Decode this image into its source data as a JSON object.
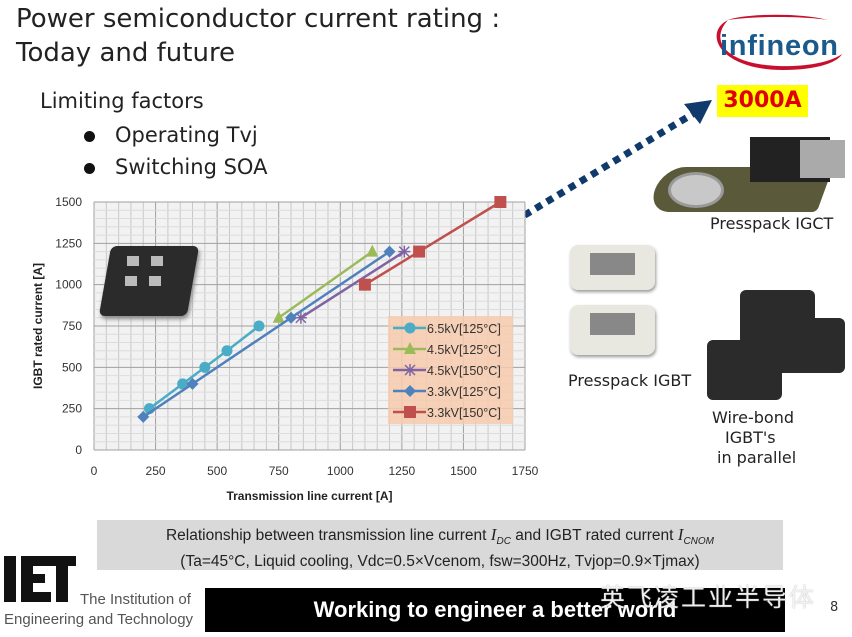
{
  "title": {
    "line1": "Power semiconductor current rating :",
    "line2": "Today and future"
  },
  "limiting": {
    "heading": "Limiting factors",
    "bullets": [
      "Operating Tvj",
      "Switching SOA"
    ]
  },
  "logo": {
    "text": "infineon",
    "color": "#1b5a8c",
    "swoosh": "#c8102e"
  },
  "badge": {
    "text": "3000A",
    "bg": "#ffff00",
    "color": "#e00000"
  },
  "devices": {
    "igct": "Presspack IGCT",
    "igbt": "Presspack IGBT",
    "wirebond": [
      "Wire-bond",
      "IGBT's",
      "in parallel"
    ]
  },
  "caption": {
    "line1_a": "Relationship between transmission line current ",
    "idc": "I",
    "idc_sub": "DC",
    "line1_b": " and IGBT rated current ",
    "icnom": "I",
    "icnom_sub": "CNOM",
    "line2": "(Ta=45°C, Liquid cooling, Vdc=0.5×Vcenom, fsw=300Hz, Tvjop=0.9×Tjmax)"
  },
  "footer": {
    "banner": "Working to engineer a better world",
    "iet_logo": "IET",
    "iet_line1": "The Institution of",
    "iet_line2": "Engineering and Technology",
    "page_number": "8",
    "watermark": "英飞凌工业半导体"
  },
  "chart_data": {
    "type": "line",
    "xlabel": "Transmission line current [A]",
    "ylabel": "IGBT rated current [A]",
    "xlim": [
      0,
      1750
    ],
    "ylim": [
      0,
      1500
    ],
    "xticks": [
      0,
      250,
      500,
      750,
      1000,
      1250,
      1500,
      1750
    ],
    "yticks": [
      0,
      250,
      500,
      750,
      1000,
      1250,
      1500
    ],
    "grid": true,
    "legend_position": "bottom-right",
    "series": [
      {
        "name": "6.5kV[125°C]",
        "color": "#4bacc6",
        "marker": "circle",
        "points": [
          [
            225,
            250
          ],
          [
            360,
            400
          ],
          [
            450,
            500
          ],
          [
            540,
            600
          ],
          [
            670,
            750
          ]
        ]
      },
      {
        "name": "4.5kV[125°C]",
        "color": "#9bbb59",
        "marker": "triangle",
        "points": [
          [
            750,
            800
          ],
          [
            1130,
            1200
          ]
        ]
      },
      {
        "name": "4.5kV[150°C]",
        "color": "#8064a2",
        "marker": "star",
        "points": [
          [
            840,
            800
          ],
          [
            1260,
            1200
          ]
        ]
      },
      {
        "name": "3.3kV[125°C]",
        "color": "#4f81bd",
        "marker": "diamond",
        "points": [
          [
            200,
            200
          ],
          [
            400,
            400
          ],
          [
            800,
            800
          ],
          [
            1200,
            1200
          ]
        ]
      },
      {
        "name": "3.3kV[150°C]",
        "color": "#c0504d",
        "marker": "square",
        "points": [
          [
            1100,
            1000
          ],
          [
            1320,
            1200
          ],
          [
            1650,
            1500
          ]
        ]
      }
    ]
  }
}
